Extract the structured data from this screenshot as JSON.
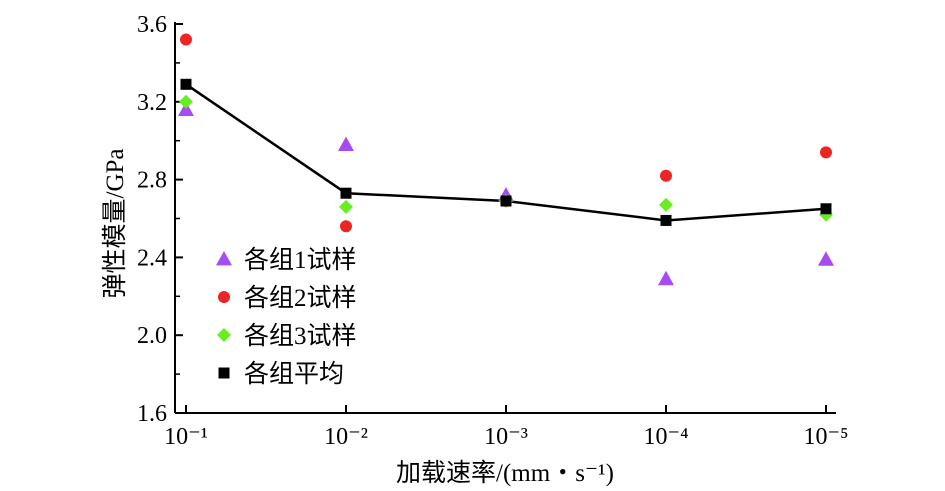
{
  "chart_data": {
    "type": "scatter",
    "title": "",
    "xlabel": "加载速率/(mm・s⁻¹)",
    "ylabel": "弹性模量/GPa",
    "x_categories": [
      "10⁻¹",
      "10⁻²",
      "10⁻³",
      "10⁻⁴",
      "10⁻⁵"
    ],
    "x_values": [
      0.1,
      0.01,
      0.001,
      0.0001,
      1e-05
    ],
    "x_scale": "log-reversed",
    "ylim": [
      1.6,
      3.6
    ],
    "y_ticks": [
      "1.6",
      "2.0",
      "2.4",
      "2.8",
      "3.2",
      "3.6"
    ],
    "grid": false,
    "legend_position": "lower-left",
    "series": [
      {
        "name": "各组1试样",
        "marker": "triangle",
        "color": "#a64cf0",
        "values": [
          3.16,
          2.98,
          2.72,
          2.29,
          2.39
        ]
      },
      {
        "name": "各组2试样",
        "marker": "circle",
        "color": "#ee2424",
        "values": [
          3.52,
          2.56,
          2.69,
          2.82,
          2.94
        ]
      },
      {
        "name": "各组3试样",
        "marker": "diamond",
        "color": "#66ee22",
        "values": [
          3.2,
          2.66,
          2.69,
          2.67,
          2.62
        ]
      },
      {
        "name": "各组平均",
        "marker": "square",
        "color": "#000000",
        "line": true,
        "values": [
          3.29,
          2.73,
          2.69,
          2.59,
          2.65
        ]
      }
    ]
  }
}
